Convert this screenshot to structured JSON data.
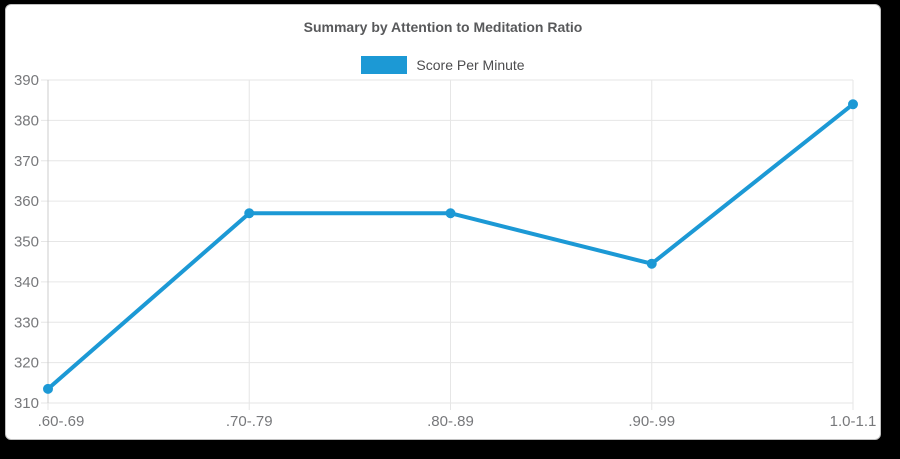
{
  "card": {
    "title": "Summary by Attention to Meditation Ratio"
  },
  "chart_data": {
    "type": "line",
    "title": "Summary by Attention to Meditation Ratio",
    "categories": [
      ".60-.69",
      ".70-.79",
      ".80-.89",
      ".90-.99",
      "1.0-1.1"
    ],
    "series": [
      {
        "name": "Score Per Minute",
        "color": "#1c99d5",
        "values": [
          313.5,
          357,
          357,
          344.5,
          384
        ]
      }
    ],
    "xlabel": "",
    "ylabel": "",
    "ylim": [
      310,
      390
    ],
    "ytick_step": 10,
    "yticks": [
      310,
      320,
      330,
      340,
      350,
      360,
      370,
      380,
      390
    ],
    "grid": true,
    "legend_position": "top",
    "marker_radius": 5,
    "line_width": 4,
    "colors": {
      "grid": "#e6e6e6",
      "axis": "#cccccc",
      "tick_label": "#77787b",
      "title": "#58595b",
      "legend_text": "#4d4d4f"
    }
  }
}
